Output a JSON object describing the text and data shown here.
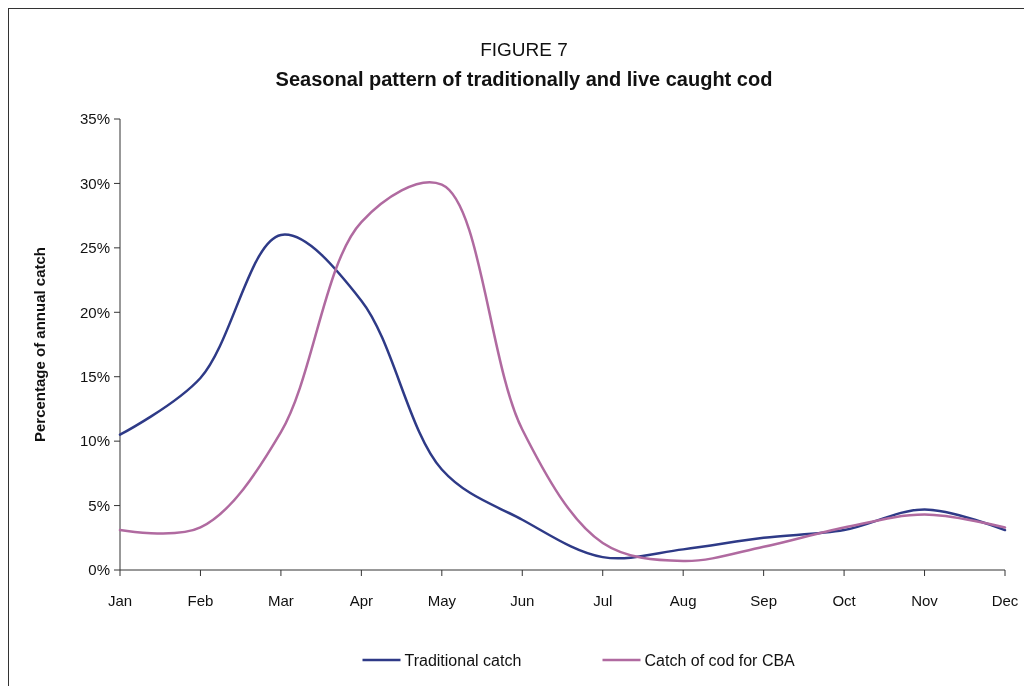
{
  "chart_data": {
    "type": "line",
    "title": "FIGURE 7",
    "subtitle": "Seasonal pattern of traditionally and live caught cod",
    "ylabel": "Percentage of annual catch",
    "categories": [
      "Jan",
      "Feb",
      "Mar",
      "Apr",
      "May",
      "Jun",
      "Jul",
      "Aug",
      "Sep",
      "Oct",
      "Nov",
      "Dec"
    ],
    "series": [
      {
        "name": "Traditional catch",
        "color": "#2e3a87",
        "values": [
          10.5,
          14.9,
          26.0,
          20.9,
          7.8,
          3.9,
          1.0,
          1.6,
          2.5,
          3.1,
          4.7,
          3.1
        ]
      },
      {
        "name": "Catch of cod for CBA",
        "color": "#b06aa0",
        "values": [
          3.1,
          3.3,
          10.7,
          27.0,
          29.9,
          10.9,
          2.1,
          0.7,
          1.8,
          3.3,
          4.3,
          3.3
        ]
      }
    ],
    "ylim": [
      0,
      35
    ],
    "yticks": [
      {
        "value": 0,
        "label": "0%"
      },
      {
        "value": 5,
        "label": "5%"
      },
      {
        "value": 10,
        "label": "10%"
      },
      {
        "value": 15,
        "label": "15%"
      },
      {
        "value": 20,
        "label": "20%"
      },
      {
        "value": 25,
        "label": "25%"
      },
      {
        "value": 30,
        "label": "30%"
      },
      {
        "value": 35,
        "label": "35%"
      }
    ],
    "grid": false,
    "legend": "bottom",
    "marker": "none",
    "line_style": "solid"
  }
}
